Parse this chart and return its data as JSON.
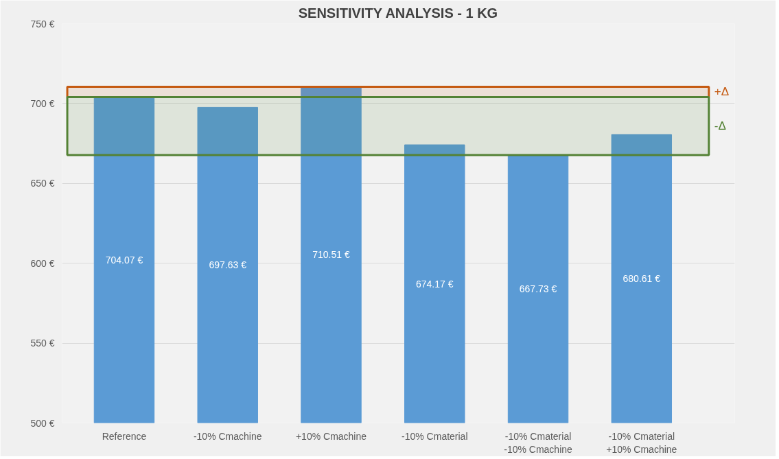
{
  "chart_data": {
    "type": "bar",
    "title": "SENSITIVITY ANALYSIS - 1 KG",
    "categories": [
      "Reference",
      "-10% Cmachine",
      "+10% Cmachine",
      "-10% Cmaterial",
      "-10% Cmaterial\n-10% Cmachine",
      "-10% Cmaterial\n+10% Cmachine"
    ],
    "values": [
      704.07,
      697.63,
      710.51,
      674.17,
      667.73,
      680.61
    ],
    "value_labels": [
      "704.07 €",
      "697.63 €",
      "710.51 €",
      "674.17 €",
      "667.73 €",
      "680.61 €"
    ],
    "color": "#5b9bd5",
    "ylim": [
      500,
      750
    ],
    "yticks": [
      {
        "value": 500,
        "label": "500 €"
      },
      {
        "value": 550,
        "label": "550 €"
      },
      {
        "value": 600,
        "label": "600 €"
      },
      {
        "value": 650,
        "label": "650 €"
      },
      {
        "value": 700,
        "label": "700 €"
      },
      {
        "value": 750,
        "label": "750 €"
      }
    ],
    "grid": "y",
    "bands": [
      {
        "axis": "y",
        "from": 704.07,
        "to": 710.51,
        "label": "+Δ",
        "color": "#c55a11"
      },
      {
        "axis": "y",
        "from": 667.73,
        "to": 704.07,
        "label": "-Δ",
        "color": "#548235"
      }
    ]
  }
}
